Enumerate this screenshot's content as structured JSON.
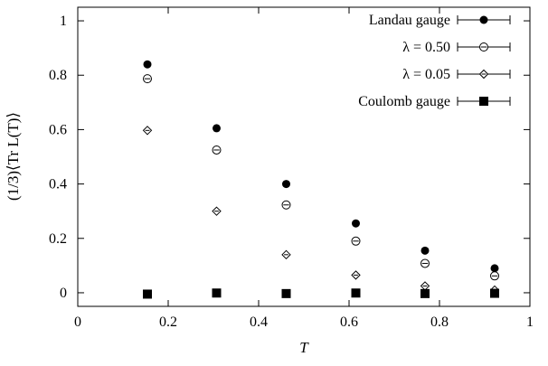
{
  "chart_data": {
    "type": "scatter",
    "title": "",
    "xlabel": "T",
    "ylabel": "(1/3)⟨Tr L(T)⟩",
    "xlim": [
      0,
      1
    ],
    "ylim": [
      -0.05,
      1.05
    ],
    "x_ticks": [
      0,
      0.2,
      0.4,
      0.6,
      0.8,
      1
    ],
    "x_tick_labels": [
      "0",
      "0.2",
      "0.4",
      "0.6",
      "0.8",
      "1"
    ],
    "y_ticks": [
      0,
      0.2,
      0.4,
      0.6,
      0.8,
      1
    ],
    "y_tick_labels": [
      "0",
      "0.2",
      "0.4",
      "0.6",
      "0.8",
      "1"
    ],
    "grid": false,
    "legend_position": "top-right",
    "series": [
      {
        "name": "Landau gauge",
        "marker": "filled-circle",
        "x": [
          0.154,
          0.307,
          0.461,
          0.615,
          0.768,
          0.922
        ],
        "y": [
          0.84,
          0.605,
          0.4,
          0.255,
          0.155,
          0.09
        ]
      },
      {
        "name": "λ = 0.50",
        "marker": "circle-minus",
        "x": [
          0.154,
          0.307,
          0.461,
          0.615,
          0.768,
          0.922
        ],
        "y": [
          0.787,
          0.525,
          0.323,
          0.19,
          0.108,
          0.062
        ]
      },
      {
        "name": "λ = 0.05",
        "marker": "diamond",
        "x": [
          0.154,
          0.307,
          0.461,
          0.615,
          0.768,
          0.922
        ],
        "y": [
          0.597,
          0.3,
          0.14,
          0.065,
          0.025,
          0.01
        ]
      },
      {
        "name": "Coulomb gauge",
        "marker": "filled-square",
        "x": [
          0.154,
          0.307,
          0.461,
          0.615,
          0.768,
          0.922
        ],
        "y": [
          -0.005,
          -0.001,
          -0.003,
          -0.001,
          -0.003,
          -0.002
        ]
      }
    ]
  }
}
